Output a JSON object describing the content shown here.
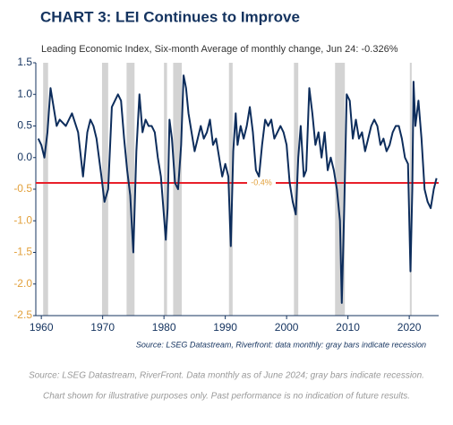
{
  "chart_data": {
    "type": "line",
    "title": "CHART 3: LEI Continues to Improve",
    "subtitle": "Leading Economic Index, Six-month Average of monthly change, Jun 24: -0.326%",
    "note": "Source: LSEG Datastream, Riverfront: data monthly: gray bars indicate recession",
    "color": "#0d2d5c",
    "x": [
      1959.5,
      1960.0,
      1960.5,
      1961.0,
      1961.5,
      1962.5,
      1963.0,
      1964.0,
      1965.0,
      1966.0,
      1966.8,
      1967.5,
      1968.0,
      1968.5,
      1969.0,
      1969.8,
      1970.3,
      1970.9,
      1971.5,
      1972.0,
      1972.5,
      1973.0,
      1973.5,
      1974.0,
      1974.5,
      1975.0,
      1975.5,
      1976.0,
      1976.5,
      1977.0,
      1977.5,
      1978.0,
      1978.5,
      1979.0,
      1979.5,
      1980.3,
      1980.6,
      1980.9,
      1981.3,
      1981.8,
      1982.3,
      1982.8,
      1983.2,
      1983.6,
      1984.0,
      1984.5,
      1985.0,
      1985.5,
      1986.0,
      1986.5,
      1987.0,
      1987.5,
      1988.0,
      1988.5,
      1989.0,
      1989.5,
      1990.0,
      1990.5,
      1990.9,
      1991.3,
      1991.7,
      1992.0,
      1992.5,
      1993.0,
      1993.5,
      1994.0,
      1994.5,
      1995.0,
      1995.5,
      1996.0,
      1996.5,
      1997.0,
      1997.5,
      1998.0,
      1998.5,
      1999.0,
      1999.5,
      2000.0,
      2000.5,
      2001.0,
      2001.5,
      2001.9,
      2002.3,
      2002.8,
      2003.2,
      2003.7,
      2004.2,
      2004.7,
      2005.2,
      2005.7,
      2006.2,
      2006.7,
      2007.2,
      2007.7,
      2008.2,
      2008.7,
      2009.0,
      2009.4,
      2009.8,
      2010.3,
      2010.8,
      2011.3,
      2011.8,
      2012.3,
      2012.8,
      2013.3,
      2013.8,
      2014.3,
      2014.8,
      2015.3,
      2015.8,
      2016.3,
      2016.8,
      2017.3,
      2017.8,
      2018.3,
      2018.8,
      2019.3,
      2019.8,
      2020.2,
      2020.5,
      2020.7,
      2021.0,
      2021.5,
      2022.0,
      2022.5,
      2023.0,
      2023.5,
      2024.0,
      2024.45
    ],
    "values": [
      0.3,
      0.2,
      0.0,
      0.4,
      1.1,
      0.5,
      0.6,
      0.5,
      0.7,
      0.4,
      -0.3,
      0.4,
      0.6,
      0.5,
      0.3,
      -0.3,
      -0.7,
      -0.5,
      0.8,
      0.9,
      1.0,
      0.9,
      0.3,
      -0.2,
      -0.6,
      -1.5,
      0.1,
      1.0,
      0.4,
      0.6,
      0.5,
      0.5,
      0.4,
      0.0,
      -0.3,
      -1.3,
      -0.8,
      0.6,
      0.3,
      -0.4,
      -0.5,
      0.2,
      1.3,
      1.1,
      0.7,
      0.4,
      0.1,
      0.3,
      0.5,
      0.3,
      0.4,
      0.6,
      0.2,
      0.3,
      0.0,
      -0.3,
      -0.1,
      -0.3,
      -1.4,
      0.1,
      0.7,
      0.2,
      0.5,
      0.3,
      0.5,
      0.8,
      0.4,
      -0.2,
      -0.3,
      0.2,
      0.6,
      0.5,
      0.6,
      0.3,
      0.4,
      0.5,
      0.4,
      0.2,
      -0.4,
      -0.7,
      -0.9,
      0.0,
      0.5,
      -0.3,
      -0.2,
      1.1,
      0.7,
      0.2,
      0.4,
      0.0,
      0.4,
      -0.2,
      0.0,
      -0.2,
      -0.5,
      -1.0,
      -2.3,
      -0.8,
      1.0,
      0.9,
      0.3,
      0.6,
      0.3,
      0.4,
      0.1,
      0.3,
      0.5,
      0.6,
      0.5,
      0.2,
      0.3,
      0.1,
      0.2,
      0.4,
      0.5,
      0.5,
      0.3,
      0.0,
      -0.1,
      -1.8,
      -0.5,
      1.2,
      0.5,
      0.9,
      0.3,
      -0.5,
      -0.7,
      -0.8,
      -0.5,
      -0.326
    ],
    "shaded_ranges": [
      [
        1960.3,
        1961.1
      ],
      [
        1969.9,
        1970.9
      ],
      [
        1973.9,
        1975.2
      ],
      [
        1980.0,
        1980.5
      ],
      [
        1981.5,
        1982.9
      ],
      [
        1990.6,
        1991.2
      ],
      [
        2001.2,
        2001.9
      ],
      [
        2007.9,
        2009.5
      ],
      [
        2020.1,
        2020.4
      ]
    ],
    "reference_line": {
      "value": -0.4,
      "label": "-0.4%",
      "color": "#e8202a"
    },
    "xlim": [
      1959.1,
      2024.8
    ],
    "xticks": [
      1960,
      1970,
      1980,
      1990,
      2000,
      2010,
      2020
    ],
    "ylim": [
      -2.5,
      1.5
    ],
    "yticks": [
      1.5,
      {
        "value": 1,
        "label": "1.0"
      },
      0.5,
      {
        "value": 0,
        "label": "0.0"
      },
      -0.5,
      {
        "value": -1,
        "label": "-1.0"
      },
      -1.5,
      {
        "value": -2,
        "label": "-2.0"
      },
      -2.5
    ]
  },
  "footer": [
    "Source: LSEG Datastream, RiverFront. Data monthly as of June 2024; gray bars indicate recession.",
    "Chart shown for illustrative purposes only. Past performance is no indication of future results."
  ]
}
